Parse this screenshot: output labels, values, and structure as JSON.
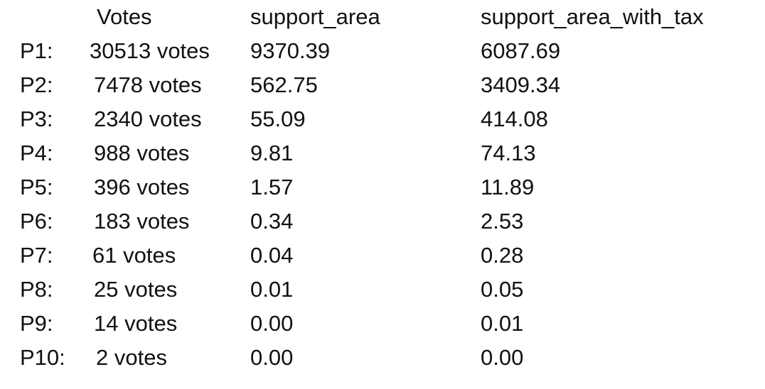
{
  "headers": {
    "votes": "Votes",
    "support_area": "support_area",
    "support_area_with_tax": "support_area_with_tax"
  },
  "rows": [
    {
      "label": "P1:",
      "votes": "30513 votes",
      "support_area": "9370.39",
      "support_area_with_tax": "6087.69"
    },
    {
      "label": "P2:",
      "votes": "7478 votes",
      "support_area": "562.75",
      "support_area_with_tax": "3409.34"
    },
    {
      "label": "P3:",
      "votes": "2340 votes",
      "support_area": "55.09",
      "support_area_with_tax": "414.08"
    },
    {
      "label": "P4:",
      "votes": "988 votes",
      "support_area": "9.81",
      "support_area_with_tax": "74.13"
    },
    {
      "label": "P5:",
      "votes": "396 votes",
      "support_area": "1.57",
      "support_area_with_tax": "11.89"
    },
    {
      "label": "P6:",
      "votes": "183 votes",
      "support_area": "0.34",
      "support_area_with_tax": "2.53"
    },
    {
      "label": "P7:",
      "votes": "61 votes",
      "support_area": "0.04",
      "support_area_with_tax": "0.28"
    },
    {
      "label": "P8:",
      "votes": "25 votes",
      "support_area": "0.01",
      "support_area_with_tax": "0.05"
    },
    {
      "label": "P9:",
      "votes": "14 votes",
      "support_area": "0.00",
      "support_area_with_tax": "0.01"
    },
    {
      "label": "P10:",
      "votes": "2 votes",
      "support_area": "0.00",
      "support_area_with_tax": "0.00"
    }
  ]
}
